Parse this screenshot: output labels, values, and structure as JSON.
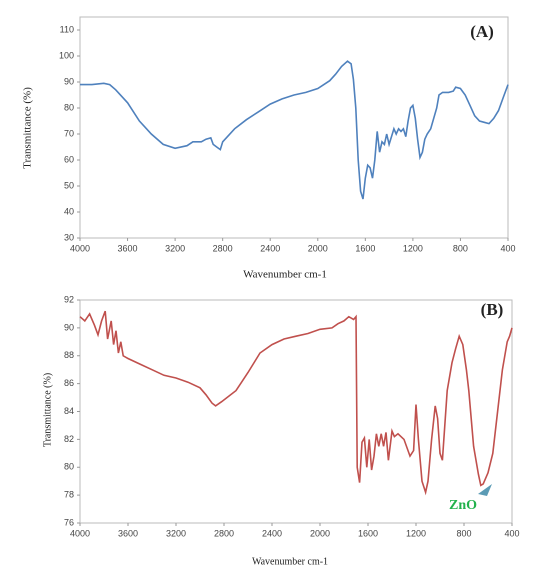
{
  "chart_data": [
    {
      "type": "line",
      "title": "(A)",
      "x_label": "Wavenumber cm-1",
      "y_label": "Transmittance (%)",
      "x": [
        4000,
        3900,
        3800,
        3750,
        3700,
        3600,
        3500,
        3400,
        3300,
        3200,
        3100,
        3050,
        2980,
        2940,
        2900,
        2880,
        2850,
        2820,
        2800,
        2700,
        2600,
        2500,
        2400,
        2300,
        2200,
        2100,
        2000,
        1900,
        1850,
        1800,
        1750,
        1720,
        1700,
        1680,
        1660,
        1640,
        1620,
        1600,
        1580,
        1560,
        1540,
        1520,
        1500,
        1480,
        1460,
        1440,
        1420,
        1400,
        1380,
        1360,
        1340,
        1320,
        1300,
        1280,
        1260,
        1240,
        1220,
        1200,
        1180,
        1160,
        1140,
        1120,
        1100,
        1080,
        1050,
        1000,
        980,
        950,
        900,
        860,
        840,
        800,
        760,
        720,
        680,
        640,
        600,
        560,
        520,
        480,
        440,
        400
      ],
      "series": [
        {
          "color": "#4f81bd",
          "values": [
            89,
            89,
            89.5,
            89,
            87,
            82,
            75,
            70,
            66,
            64.5,
            65.5,
            67,
            67,
            68,
            68.5,
            66,
            65,
            64,
            67,
            72,
            75.5,
            78.5,
            81.5,
            83.5,
            85,
            86,
            87.5,
            90.5,
            93,
            96,
            98,
            97,
            91,
            80,
            60,
            48,
            45,
            53,
            58,
            57,
            53,
            60,
            71,
            63,
            67,
            66,
            70,
            66,
            69,
            72,
            70,
            72,
            71,
            72,
            69,
            75,
            80,
            81,
            76,
            68,
            61,
            63,
            68,
            70,
            72,
            80,
            85,
            86,
            86,
            86.5,
            88,
            87.5,
            85,
            81,
            77,
            75,
            74.5,
            74,
            76,
            79,
            84,
            89
          ]
        }
      ],
      "xlim": [
        4000,
        400
      ],
      "xticks": [
        4000,
        3600,
        3200,
        2800,
        2400,
        2000,
        1600,
        1200,
        800,
        400
      ],
      "ylim": [
        30,
        115
      ],
      "yticks": [
        30,
        40,
        50,
        60,
        70,
        80,
        90,
        100,
        110
      ],
      "grid": false
    },
    {
      "type": "line",
      "title": "(B)",
      "x_label": "Wavenumber cm-1",
      "y_label": "Transmittance (%)",
      "annotation": "ZnO",
      "x": [
        4000,
        3960,
        3920,
        3880,
        3850,
        3820,
        3790,
        3770,
        3740,
        3720,
        3700,
        3680,
        3660,
        3640,
        3600,
        3500,
        3400,
        3300,
        3200,
        3100,
        3000,
        2950,
        2900,
        2870,
        2820,
        2700,
        2600,
        2500,
        2400,
        2300,
        2200,
        2100,
        2000,
        1900,
        1850,
        1800,
        1760,
        1720,
        1700,
        1690,
        1670,
        1650,
        1630,
        1610,
        1590,
        1570,
        1550,
        1530,
        1510,
        1490,
        1470,
        1450,
        1430,
        1400,
        1380,
        1350,
        1300,
        1250,
        1220,
        1200,
        1180,
        1150,
        1120,
        1100,
        1070,
        1040,
        1020,
        1000,
        980,
        960,
        940,
        900,
        870,
        840,
        810,
        780,
        760,
        740,
        720,
        700,
        680,
        660,
        640,
        600,
        560,
        520,
        480,
        440,
        420,
        400
      ],
      "series": [
        {
          "color": "#c0504d",
          "values": [
            90.8,
            90.5,
            91,
            90.2,
            89.5,
            90.5,
            91.2,
            89.2,
            90.5,
            88.8,
            89.8,
            88.2,
            89,
            88,
            87.8,
            87.4,
            87,
            86.6,
            86.4,
            86.1,
            85.7,
            85.2,
            84.6,
            84.4,
            84.7,
            85.5,
            86.8,
            88.2,
            88.8,
            89.2,
            89.4,
            89.6,
            89.9,
            90,
            90.3,
            90.5,
            90.8,
            90.6,
            90.8,
            80,
            78.9,
            81.8,
            82.1,
            80,
            82,
            79.8,
            80.8,
            82.4,
            81.5,
            82.4,
            81.5,
            82.5,
            80.5,
            82.6,
            82.2,
            82.4,
            82,
            80.8,
            81.2,
            84.5,
            82,
            79,
            78.2,
            79,
            82,
            84.4,
            83.5,
            81,
            80.5,
            83,
            85.5,
            87.5,
            88.5,
            89.4,
            88.8,
            87,
            85.5,
            83.5,
            81.5,
            80.5,
            79.5,
            78.7,
            78.8,
            79.6,
            81,
            84,
            87,
            89,
            89.4,
            90
          ]
        }
      ],
      "xlim": [
        4000,
        400
      ],
      "xticks": [
        4000,
        3600,
        3200,
        2800,
        2400,
        2000,
        1600,
        1200,
        800,
        400
      ],
      "ylim": [
        76,
        92
      ],
      "yticks": [
        76,
        78,
        80,
        82,
        84,
        86,
        88,
        90,
        92
      ],
      "grid": false
    }
  ]
}
